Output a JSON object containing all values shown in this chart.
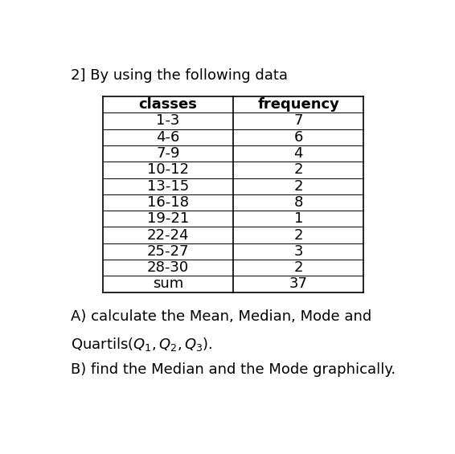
{
  "title": "2] By using the following data",
  "col_headers": [
    "classes",
    "frequency"
  ],
  "rows": [
    [
      "1-3",
      "7"
    ],
    [
      "4-6",
      "6"
    ],
    [
      "7-9",
      "4"
    ],
    [
      "10-12",
      "2"
    ],
    [
      "13-15",
      "2"
    ],
    [
      "16-18",
      "8"
    ],
    [
      "19-21",
      "1"
    ],
    [
      "22-24",
      "2"
    ],
    [
      "25-27",
      "3"
    ],
    [
      "28-30",
      "2"
    ],
    [
      "sum",
      "37"
    ]
  ],
  "footer_lines": [
    "A) calculate the Mean, Median, Mode and",
    "Quartils($Q_1, Q_2, Q_3$).",
    "B) find the Median and the Mode graphically."
  ],
  "bg_color": "#ffffff",
  "text_color": "#000000",
  "header_fontsize": 13,
  "body_fontsize": 13,
  "title_fontsize": 13,
  "footer_fontsize": 13
}
